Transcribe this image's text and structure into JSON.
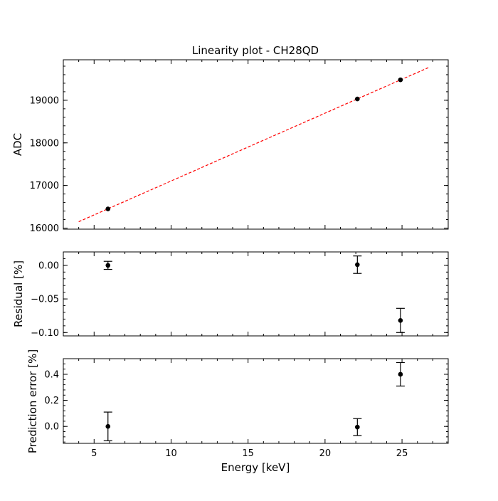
{
  "chart_data": {
    "title": "Linearity plot - CH28QD",
    "xlabel": "Energy [keV]",
    "xlim": [
      3,
      28
    ],
    "xticks": [
      5,
      10,
      15,
      20,
      25
    ],
    "panels": [
      {
        "id": "adc",
        "type": "scatter",
        "ylabel": "ADC",
        "ylim": [
          15975,
          19950
        ],
        "yticks": [
          16000,
          17000,
          18000,
          19000
        ],
        "points": [
          {
            "x": 5.9,
            "y": 16450
          },
          {
            "x": 22.1,
            "y": 19030
          },
          {
            "x": 24.9,
            "y": 19480
          }
        ],
        "fit_line": {
          "x": [
            4.0,
            26.8
          ],
          "y": [
            16150,
            19780
          ],
          "color": "#ff0000",
          "style": "dashed"
        }
      },
      {
        "id": "residual",
        "type": "scatter",
        "ylabel": "Residual [%]",
        "ylim": [
          -0.105,
          0.02
        ],
        "yticks": [
          0.0,
          -0.05,
          -0.1
        ],
        "ytick_labels": [
          "0.00",
          "−0.05",
          "−0.10"
        ],
        "points": [
          {
            "x": 5.9,
            "y": 0.0,
            "err": 0.006
          },
          {
            "x": 22.1,
            "y": 0.001,
            "err": 0.013
          },
          {
            "x": 24.9,
            "y": -0.082,
            "err": 0.018
          }
        ]
      },
      {
        "id": "prediction",
        "type": "scatter",
        "ylabel": "Prediction error [%]",
        "ylim": [
          -0.13,
          0.52
        ],
        "yticks": [
          0.0,
          0.2,
          0.4
        ],
        "ytick_labels": [
          "0.0",
          "0.2",
          "0.4"
        ],
        "points": [
          {
            "x": 5.9,
            "y": 0.0,
            "err": 0.11
          },
          {
            "x": 22.1,
            "y": -0.005,
            "err": 0.065
          },
          {
            "x": 24.9,
            "y": 0.4,
            "err": 0.09
          }
        ]
      }
    ],
    "grid": false,
    "marker_color": "#000000"
  }
}
